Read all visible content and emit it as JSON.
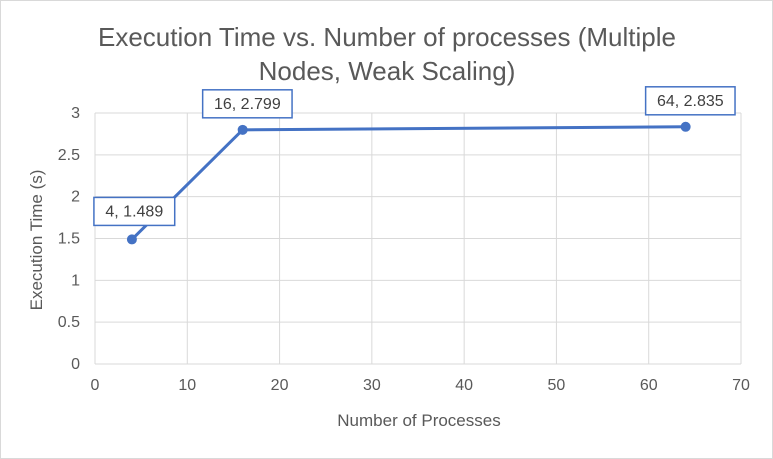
{
  "chart_data": {
    "type": "line",
    "title_lines": [
      "Execution Time vs. Number of processes (Multiple",
      "Nodes, Weak Scaling)"
    ],
    "xlabel": "Number of Processes",
    "ylabel": "Execution Time (s)",
    "xlim": [
      0,
      70
    ],
    "ylim": [
      0,
      3
    ],
    "xticks": [
      0,
      10,
      20,
      30,
      40,
      50,
      60,
      70
    ],
    "yticks": [
      0,
      0.5,
      1,
      1.5,
      2,
      2.5,
      3
    ],
    "ytick_labels": [
      "0",
      "0.5",
      "1",
      "1.5",
      "2",
      "2.5",
      "3"
    ],
    "grid": "vertical and horizontal",
    "series": [
      {
        "color": "#4472c4",
        "points": [
          {
            "x": 4,
            "y": 1.489,
            "label": "4, 1.489"
          },
          {
            "x": 16,
            "y": 2.799,
            "label": "16, 2.799"
          },
          {
            "x": 64,
            "y": 2.835,
            "label": "64, 2.835"
          }
        ]
      }
    ]
  }
}
